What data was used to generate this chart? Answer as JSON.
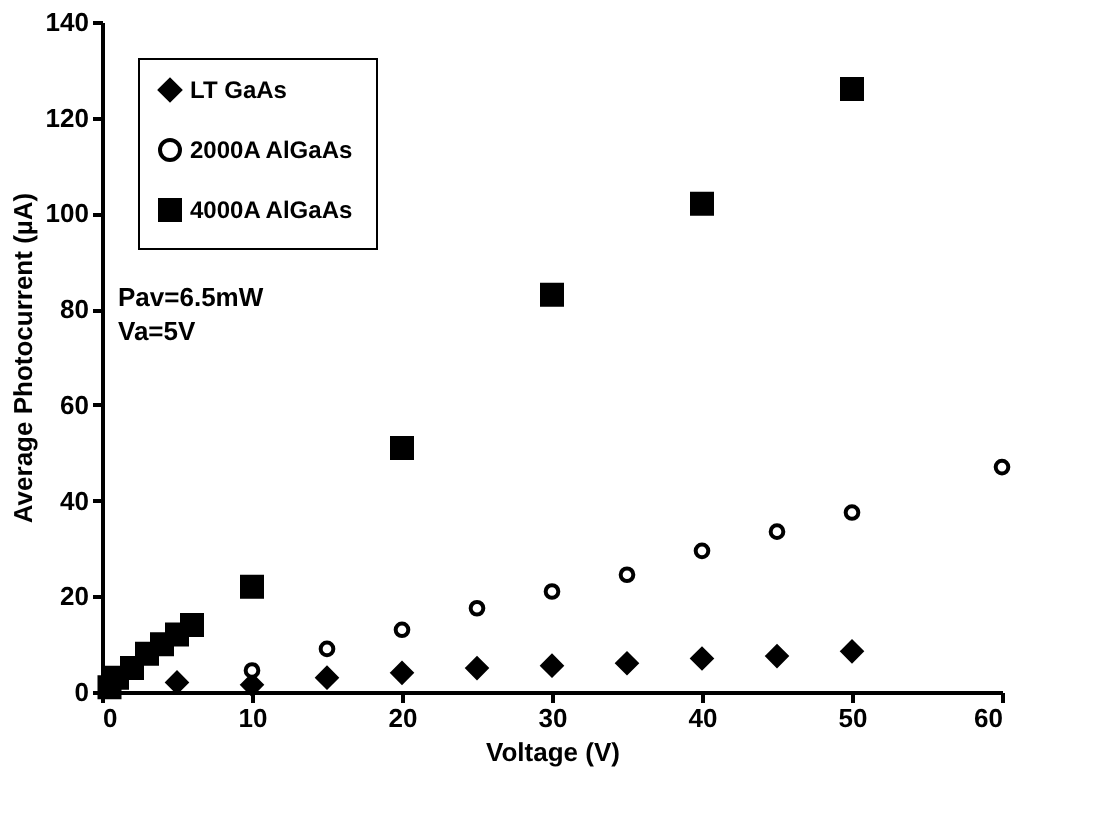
{
  "chart_data": {
    "type": "scatter",
    "xlabel": "Voltage (V)",
    "ylabel": "Average Photocurrent (µA)",
    "xlim": [
      0,
      60
    ],
    "xticks": [
      0,
      10,
      20,
      30,
      40,
      50,
      60
    ],
    "ylim": [
      0,
      140
    ],
    "yticks": [
      0,
      20,
      40,
      60,
      80,
      100,
      120,
      140
    ],
    "grid": false,
    "legend": "top left",
    "annotations": [
      "Pav=6.5mW",
      "Va=5V"
    ],
    "series": [
      {
        "name": "LT GaAs",
        "color": "#000000",
        "marker": "diamond",
        "x": [
          5,
          10,
          15,
          20,
          25,
          30,
          35,
          40,
          45,
          50
        ],
        "values": [
          2,
          1.5,
          3,
          4,
          5,
          5.5,
          6,
          7,
          7.5,
          8.5
        ]
      },
      {
        "name": "2000A AlGaAs",
        "color": "#000000",
        "marker": "circle",
        "x": [
          10,
          15,
          20,
          25,
          30,
          35,
          40,
          45,
          50,
          60
        ],
        "values": [
          4.5,
          9,
          13,
          17.5,
          21,
          24.5,
          29.5,
          33.5,
          37.5,
          47
        ]
      },
      {
        "name": "4000A AlGaAs",
        "color": "#000000",
        "marker": "square",
        "x": [
          0.5,
          1,
          2,
          3,
          4,
          5,
          6,
          10,
          20,
          30,
          40,
          50
        ],
        "values": [
          1,
          3,
          5,
          8,
          10,
          12,
          14,
          22,
          51,
          83,
          102,
          126
        ]
      }
    ]
  }
}
